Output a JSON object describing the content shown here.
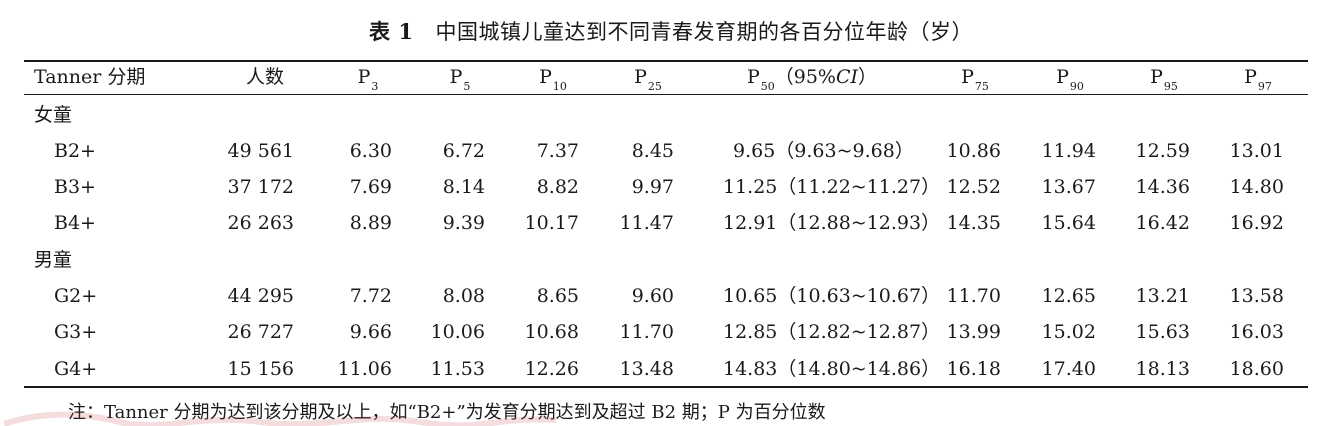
{
  "caption": {
    "label": "表 1",
    "text": "中国城镇儿童达到不同青春发育期的各百分位年龄（岁）"
  },
  "table": {
    "headers": [
      {
        "text": "Tanner 分期",
        "sub": ""
      },
      {
        "text": "人数",
        "sub": ""
      },
      {
        "text": "P",
        "sub": "3"
      },
      {
        "text": "P",
        "sub": "5"
      },
      {
        "text": "P",
        "sub": "10"
      },
      {
        "text": "P",
        "sub": "25"
      },
      {
        "text": "P",
        "sub": "50",
        "after": "（95%",
        "ci": "CI",
        "close": "）"
      },
      {
        "text": "P",
        "sub": "75"
      },
      {
        "text": "P",
        "sub": "90"
      },
      {
        "text": "P",
        "sub": "95"
      },
      {
        "text": "P",
        "sub": "97"
      }
    ],
    "groups": [
      {
        "label": "女童",
        "rows": [
          {
            "stage": "B2+",
            "n": "49 561",
            "p3": "6.30",
            "p5": "6.72",
            "p10": "7.37",
            "p25": "8.45",
            "p50": "9.65（9.63~9.68）",
            "p75": "10.86",
            "p90": "11.94",
            "p95": "12.59",
            "p97": "13.01"
          },
          {
            "stage": "B3+",
            "n": "37 172",
            "p3": "7.69",
            "p5": "8.14",
            "p10": "8.82",
            "p25": "9.97",
            "p50": "11.25（11.22~11.27）",
            "p75": "12.52",
            "p90": "13.67",
            "p95": "14.36",
            "p97": "14.80"
          },
          {
            "stage": "B4+",
            "n": "26 263",
            "p3": "8.89",
            "p5": "9.39",
            "p10": "10.17",
            "p25": "11.47",
            "p50": "12.91（12.88~12.93）",
            "p75": "14.35",
            "p90": "15.64",
            "p95": "16.42",
            "p97": "16.92"
          }
        ]
      },
      {
        "label": "男童",
        "rows": [
          {
            "stage": "G2+",
            "n": "44 295",
            "p3": "7.72",
            "p5": "8.08",
            "p10": "8.65",
            "p25": "9.60",
            "p50": "10.65（10.63~10.67）",
            "p75": "11.70",
            "p90": "12.65",
            "p95": "13.21",
            "p97": "13.58"
          },
          {
            "stage": "G3+",
            "n": "26 727",
            "p3": "9.66",
            "p5": "10.06",
            "p10": "10.68",
            "p25": "11.70",
            "p50": "12.85（12.82~12.87）",
            "p75": "13.99",
            "p90": "15.02",
            "p95": "15.63",
            "p97": "16.03"
          },
          {
            "stage": "G4+",
            "n": "15 156",
            "p3": "11.06",
            "p5": "11.53",
            "p10": "12.26",
            "p25": "13.48",
            "p50": "14.83（14.80~14.86）",
            "p75": "16.18",
            "p90": "17.40",
            "p95": "18.13",
            "p97": "18.60"
          }
        ]
      }
    ]
  },
  "note": "注：Tanner 分期为达到该分期及以上，如“B2+”为发育分期达到及超过 B2 期；P 为百分位数",
  "colors": {
    "text": "#1a1a1a",
    "rule": "#1a1a1a",
    "watermark": "#c83c46"
  }
}
